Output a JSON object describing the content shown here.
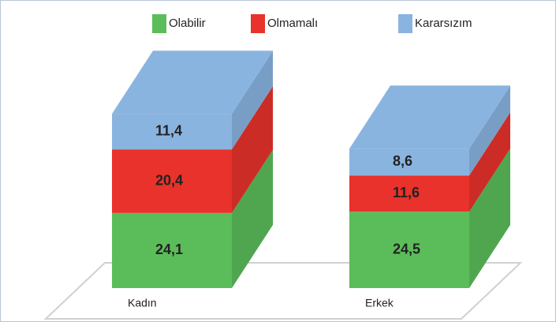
{
  "chart_data": {
    "type": "bar3d_stacked",
    "categories": [
      "Kadın",
      "Erkek"
    ],
    "series": [
      {
        "name": "Olabilir",
        "color": "#5bbd5a",
        "values": [
          24.1,
          24.5
        ],
        "value_labels": [
          "24,1",
          "24,5"
        ]
      },
      {
        "name": "Olmamalı",
        "color": "#e8322b",
        "values": [
          20.4,
          11.6
        ],
        "value_labels": [
          "20,4",
          "11,6"
        ]
      },
      {
        "name": "Kararsızım",
        "color": "#8ab4e0",
        "values": [
          11.4,
          8.6
        ],
        "value_labels": [
          "11,4",
          "8,6"
        ]
      }
    ]
  }
}
